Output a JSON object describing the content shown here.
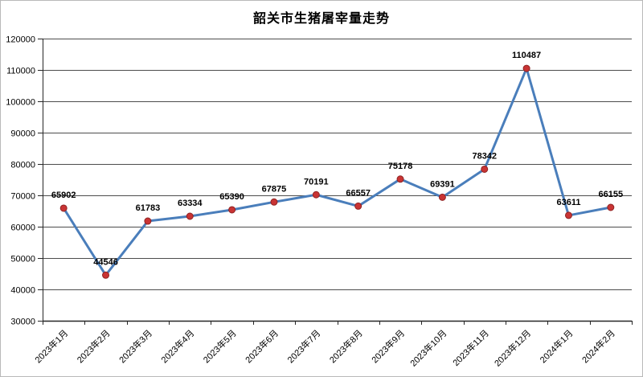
{
  "chart_data": {
    "type": "line",
    "title": "韶关市生猪屠宰量走势",
    "categories": [
      "2023年1月",
      "2023年2月",
      "2023年3月",
      "2023年4月",
      "2023年5月",
      "2023年6月",
      "2023年7月",
      "2023年8月",
      "2023年9月",
      "2023年10月",
      "2023年11月",
      "2023年12月",
      "2024年1月",
      "2024年2月"
    ],
    "values": [
      65902,
      44546,
      61783,
      63334,
      65390,
      67875,
      70191,
      66557,
      75178,
      69391,
      78342,
      110487,
      63611,
      66155
    ],
    "xlabel": "",
    "ylabel": "",
    "ylim": [
      30000,
      120000
    ],
    "ytick_step": 10000,
    "yticks": [
      30000,
      40000,
      50000,
      60000,
      70000,
      80000,
      90000,
      100000,
      110000,
      120000
    ],
    "grid": "horizontal",
    "legend": "none",
    "data_labels": "above-points",
    "colors": {
      "line": "#4a7ebb",
      "marker_fill": "#c93434",
      "marker_edge": "#8f2323",
      "gridline": "#4d4d4d",
      "axis": "#262626",
      "text": "#000000",
      "background": "#ffffff",
      "frame_border": "#b9b9b9"
    }
  }
}
